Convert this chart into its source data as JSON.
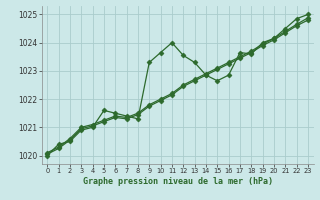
{
  "xlabel": "Graphe pression niveau de la mer (hPa)",
  "background_color": "#cce8e8",
  "grid_color": "#aacccc",
  "line_color": "#2d6a2d",
  "xlim": [
    -0.5,
    23.5
  ],
  "ylim": [
    1019.7,
    1025.3
  ],
  "yticks": [
    1020,
    1021,
    1022,
    1023,
    1024,
    1025
  ],
  "xticks": [
    0,
    1,
    2,
    3,
    4,
    5,
    6,
    7,
    8,
    9,
    10,
    11,
    12,
    13,
    14,
    15,
    16,
    17,
    18,
    19,
    20,
    21,
    22,
    23
  ],
  "series": [
    [
      1020.0,
      1020.4,
      1020.5,
      1020.9,
      1021.0,
      1021.6,
      1021.5,
      1021.4,
      1021.3,
      1023.3,
      1023.65,
      1024.0,
      1023.55,
      1023.3,
      1022.85,
      1022.65,
      1022.85,
      1023.65,
      1023.6,
      1024.0,
      1024.15,
      1024.5,
      1024.85,
      1025.0
    ],
    [
      1020.05,
      1020.25,
      1020.55,
      1020.95,
      1021.05,
      1021.2,
      1021.35,
      1021.3,
      1021.45,
      1021.75,
      1021.95,
      1022.15,
      1022.45,
      1022.65,
      1022.85,
      1023.05,
      1023.25,
      1023.45,
      1023.65,
      1023.9,
      1024.1,
      1024.35,
      1024.6,
      1024.8
    ],
    [
      1020.1,
      1020.3,
      1020.6,
      1021.0,
      1021.1,
      1021.25,
      1021.4,
      1021.35,
      1021.5,
      1021.8,
      1022.0,
      1022.2,
      1022.5,
      1022.7,
      1022.9,
      1023.1,
      1023.3,
      1023.5,
      1023.7,
      1023.95,
      1024.15,
      1024.4,
      1024.65,
      1024.88
    ]
  ]
}
